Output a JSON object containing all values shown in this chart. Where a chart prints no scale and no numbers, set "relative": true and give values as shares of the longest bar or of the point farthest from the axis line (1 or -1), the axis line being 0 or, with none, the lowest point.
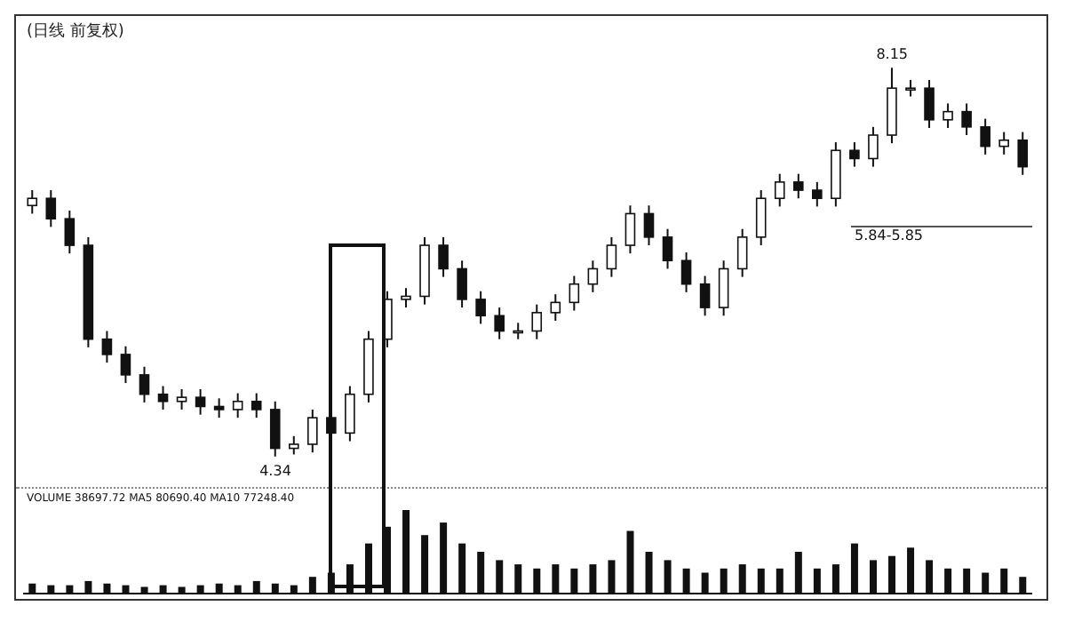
{
  "chart_data": [
    {
      "type": "candlestick",
      "title": "(日线 前复权)",
      "categories": [
        null,
        null,
        null,
        null,
        null,
        null,
        null,
        null,
        null,
        null,
        null,
        null,
        null,
        null,
        null,
        null,
        null,
        null,
        null,
        null,
        null,
        null,
        null,
        null,
        null,
        null,
        null,
        null,
        null,
        null,
        null,
        null,
        null,
        null,
        null,
        null,
        null,
        null,
        null,
        null,
        null,
        null,
        null,
        null,
        null,
        null,
        null,
        null,
        null,
        null,
        null,
        null,
        null,
        null
      ],
      "color": "#111111",
      "ohlc": [
        [
          6.8,
          6.95,
          6.72,
          6.87
        ],
        [
          6.87,
          6.95,
          6.59,
          6.67
        ],
        [
          6.67,
          6.75,
          6.33,
          6.41
        ],
        [
          6.41,
          6.49,
          5.41,
          5.49
        ],
        [
          5.49,
          5.57,
          5.26,
          5.34
        ],
        [
          5.34,
          5.42,
          5.06,
          5.14
        ],
        [
          5.14,
          5.22,
          4.87,
          4.95
        ],
        [
          4.95,
          5.03,
          4.8,
          4.88
        ],
        [
          4.88,
          5.0,
          4.8,
          4.92
        ],
        [
          4.92,
          5.0,
          4.75,
          4.83
        ],
        [
          4.83,
          4.91,
          4.72,
          4.8
        ],
        [
          4.8,
          4.96,
          4.72,
          4.88
        ],
        [
          4.88,
          4.96,
          4.72,
          4.8
        ],
        [
          4.8,
          4.88,
          4.34,
          4.42
        ],
        [
          4.42,
          4.54,
          4.36,
          4.46
        ],
        [
          4.46,
          4.8,
          4.38,
          4.72
        ],
        [
          4.72,
          4.8,
          4.49,
          4.57
        ],
        [
          4.57,
          5.03,
          4.49,
          4.95
        ],
        [
          4.95,
          5.57,
          4.87,
          5.49
        ],
        [
          5.49,
          5.96,
          5.41,
          5.88
        ],
        [
          5.88,
          5.99,
          5.8,
          5.91
        ],
        [
          5.91,
          6.49,
          5.83,
          6.41
        ],
        [
          6.41,
          6.49,
          6.1,
          6.18
        ],
        [
          6.18,
          6.26,
          5.8,
          5.88
        ],
        [
          5.88,
          5.96,
          5.64,
          5.72
        ],
        [
          5.72,
          5.8,
          5.49,
          5.57
        ],
        [
          5.57,
          5.65,
          5.49,
          5.57
        ],
        [
          5.57,
          5.83,
          5.49,
          5.75
        ],
        [
          5.75,
          5.93,
          5.67,
          5.85
        ],
        [
          5.85,
          6.11,
          5.77,
          6.03
        ],
        [
          6.03,
          6.26,
          5.95,
          6.18
        ],
        [
          6.18,
          6.49,
          6.1,
          6.41
        ],
        [
          6.41,
          6.8,
          6.33,
          6.72
        ],
        [
          6.72,
          6.8,
          6.41,
          6.49
        ],
        [
          6.49,
          6.57,
          6.18,
          6.26
        ],
        [
          6.26,
          6.34,
          5.95,
          6.03
        ],
        [
          6.03,
          6.11,
          5.72,
          5.8
        ],
        [
          5.8,
          6.26,
          5.72,
          6.18
        ],
        [
          6.18,
          6.57,
          6.1,
          6.49
        ],
        [
          6.49,
          6.95,
          6.41,
          6.87
        ],
        [
          6.87,
          7.11,
          6.79,
          7.03
        ],
        [
          7.03,
          7.11,
          6.87,
          6.95
        ],
        [
          6.95,
          7.03,
          6.79,
          6.87
        ],
        [
          6.87,
          7.42,
          6.79,
          7.34
        ],
        [
          7.34,
          7.42,
          7.18,
          7.26
        ],
        [
          7.26,
          7.57,
          7.18,
          7.49
        ],
        [
          7.49,
          8.15,
          7.41,
          7.95
        ],
        [
          7.95,
          8.03,
          7.87,
          7.95
        ],
        [
          7.95,
          8.03,
          7.56,
          7.64
        ],
        [
          7.64,
          7.8,
          7.56,
          7.72
        ],
        [
          7.72,
          7.8,
          7.49,
          7.57
        ],
        [
          7.57,
          7.65,
          7.3,
          7.38
        ],
        [
          7.38,
          7.52,
          7.3,
          7.44
        ],
        [
          7.44,
          7.52,
          7.1,
          7.18
        ]
      ],
      "annotations": [
        {
          "text": "8.15",
          "y": 8.15
        },
        {
          "text": "4.34",
          "y": 4.34
        },
        "5.84-5.85"
      ]
    },
    {
      "type": "bar",
      "relative": true,
      "color": "#111111",
      "categories": [
        null,
        null,
        null,
        null,
        null,
        null,
        null,
        null,
        null,
        null,
        null,
        null,
        null,
        null,
        null,
        null,
        null,
        null,
        null,
        null,
        null,
        null,
        null,
        null,
        null,
        null,
        null,
        null,
        null,
        null,
        null,
        null,
        null,
        null,
        null,
        null,
        null,
        null,
        null,
        null,
        null,
        null,
        null,
        null,
        null,
        null,
        null,
        null,
        null,
        null,
        null,
        null,
        null,
        null
      ],
      "values": [
        0.12,
        0.1,
        0.1,
        0.15,
        0.12,
        0.1,
        0.08,
        0.1,
        0.08,
        0.1,
        0.12,
        0.1,
        0.15,
        0.12,
        0.1,
        0.2,
        0.25,
        0.35,
        0.6,
        0.8,
        1,
        0.7,
        0.85,
        0.6,
        0.5,
        0.4,
        0.35,
        0.3,
        0.35,
        0.3,
        0.35,
        0.4,
        0.75,
        0.5,
        0.4,
        0.3,
        0.25,
        0.3,
        0.35,
        0.3,
        0.3,
        0.5,
        0.3,
        0.35,
        0.6,
        0.4,
        0.45,
        0.55,
        0.4,
        0.3,
        0.3,
        0.25,
        0.3,
        0.2
      ],
      "annotations": [
        "VOLUME 38697.72 MA5 80690.40 MA10 77248.40"
      ]
    }
  ]
}
